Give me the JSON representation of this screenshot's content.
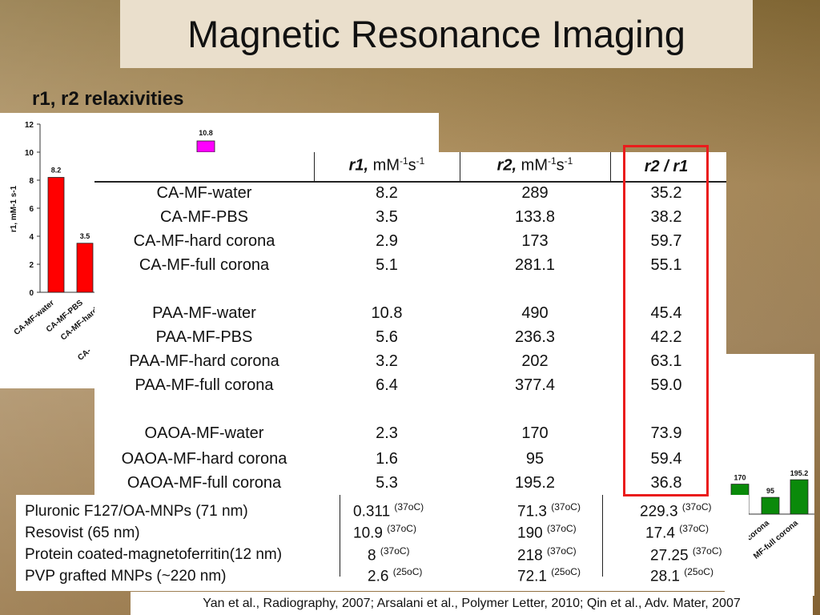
{
  "title": "Magnetic Resonance Imaging",
  "heading": "r1, r2 relaxivities",
  "table": {
    "header": {
      "r1_sym": "r1,",
      "r1_unit": "mM",
      "r2_sym": "r2,",
      "r2_unit": "mM",
      "sup_neg1": "-1",
      "s": "s",
      "ratio": "r2 / r1"
    },
    "rows": [
      {
        "name": "CA-MF-water",
        "r1": "8.2",
        "r2": "289",
        "ratio": "35.2"
      },
      {
        "name": "CA-MF-PBS",
        "r1": "3.5",
        "r2": "133.8",
        "ratio": "38.2"
      },
      {
        "name": "CA-MF-hard corona",
        "r1": "2.9",
        "r2": "173",
        "ratio": "59.7"
      },
      {
        "name": "CA-MF-full corona",
        "r1": "5.1",
        "r2": "281.1",
        "ratio": "55.1"
      },
      {
        "name": "PAA-MF-water",
        "r1": "10.8",
        "r2": "490",
        "ratio": "45.4"
      },
      {
        "name": "PAA-MF-PBS",
        "r1": "5.6",
        "r2": "236.3",
        "ratio": "42.2"
      },
      {
        "name": "PAA-MF-hard corona",
        "r1": "3.2",
        "r2": "202",
        "ratio": "63.1"
      },
      {
        "name": "PAA-MF-full corona",
        "r1": "6.4",
        "r2": "377.4",
        "ratio": "59.0"
      },
      {
        "name": "OAOA-MF-water",
        "r1": "2.3",
        "r2": "170",
        "ratio": "73.9"
      },
      {
        "name": "OAOA-MF-hard corona",
        "r1": "1.6",
        "r2": "95",
        "ratio": "59.4"
      },
      {
        "name": "OAOA-MF-full corona",
        "r1": "5.3",
        "r2": "195.2",
        "ratio": "36.8"
      }
    ]
  },
  "comparison": [
    {
      "name": "Pluronic F127/OA-MNPs (71 nm)",
      "r1": "0.311",
      "r1_note": "(37oC)",
      "r2": "71.3",
      "r2_note": "(37oC)",
      "ratio": "229.3",
      "ratio_note": "(37oC)"
    },
    {
      "name": "Resovist (65 nm)",
      "r1": "10.9",
      "r1_note": "(37oC)",
      "r2": "190",
      "r2_note": "(37oC)",
      "ratio": "17.4",
      "ratio_note": "(37oC)"
    },
    {
      "name": "Protein coated-magnetoferritin(12 nm)",
      "r1": "8",
      "r1_note": "(37oC)",
      "r2": "218",
      "r2_note": "(37oC)",
      "ratio": "27.25",
      "ratio_note": "(37oC)"
    },
    {
      "name": "PVP grafted MNPs (~220 nm)",
      "r1": "2.6",
      "r1_note": "(25oC)",
      "r2": "72.1",
      "r2_note": "(25oC)",
      "ratio": "28.1",
      "ratio_note": "(25oC)"
    }
  ],
  "citation": "Yan et al., Radiography, 2007; Arsalani et al., Polymer Letter, 2010; Qin et al., Adv. Mater, 2007",
  "chart_data": [
    {
      "type": "bar",
      "ylabel": "r1, mM-1 s-1",
      "ylim": [
        0,
        12
      ],
      "yticks": [
        "0",
        "2",
        "4",
        "6",
        "8",
        "10",
        "12"
      ],
      "categories": [
        "CA-MF-water",
        "CA-MF-PBS",
        "CA-MF-hard co",
        "CA-"
      ],
      "visible_bars": [
        {
          "label": "8.2",
          "value": 8.2,
          "color": "#ff0000"
        },
        {
          "label": "3.5",
          "value": 3.5,
          "color": "#ff0000"
        }
      ],
      "highlight_bar": {
        "label": "10.8",
        "value": 10.8,
        "color": "#ff00ff"
      }
    },
    {
      "type": "bar",
      "categories": [
        "corona",
        "MF-full corona"
      ],
      "visible_bars": [
        {
          "label": "170",
          "value": 170,
          "color": "#0a8a0a"
        },
        {
          "label": "95",
          "value": 95,
          "color": "#0a8a0a"
        },
        {
          "label": "195.2",
          "value": 195.2,
          "color": "#0a8a0a"
        }
      ]
    }
  ]
}
